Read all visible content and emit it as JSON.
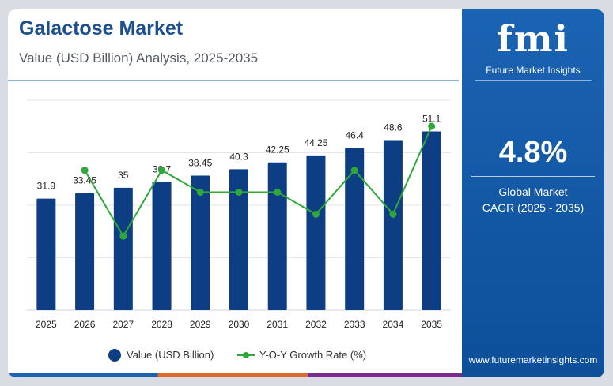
{
  "header": {
    "title": "Galactose Market",
    "subtitle": "Value (USD Billion) Analysis, 2025-2035"
  },
  "brand": {
    "logo_text": "fmi",
    "logo_subtitle": "Future Market Insights",
    "website": "www.futuremarketinsights.com"
  },
  "kpi": {
    "value": "4.8%",
    "label_line1": "Global Market",
    "label_line2": "CAGR (2025 - 2035)"
  },
  "colors": {
    "bar": "#0d3d82",
    "line": "#2fa83a",
    "panel": "#1b63b3"
  },
  "chart_data": {
    "type": "bar",
    "categories": [
      "2025",
      "2026",
      "2027",
      "2028",
      "2029",
      "2030",
      "2031",
      "2032",
      "2033",
      "2034",
      "2035"
    ],
    "series": [
      {
        "name": "Value (USD Billion)",
        "type": "bar",
        "values": [
          31.9,
          33.45,
          35,
          36.7,
          38.45,
          40.3,
          42.25,
          44.25,
          46.4,
          48.6,
          51.1
        ],
        "labels": [
          "31.9",
          "33.45",
          "35",
          "36.7",
          "38.45",
          "40.3",
          "42.25",
          "44.25",
          "46.4",
          "48.6",
          "51.1"
        ]
      },
      {
        "name": "Y-O-Y Growth Rate (%)",
        "type": "line",
        "x": [
          "2026",
          "2027",
          "2028",
          "2029",
          "2030",
          "2031",
          "2032",
          "2033",
          "2034",
          "2035"
        ],
        "values": [
          4.9,
          4.6,
          4.9,
          4.8,
          4.8,
          4.8,
          4.7,
          4.9,
          4.7,
          5.1
        ]
      }
    ],
    "ylim_bar": [
      0,
      60
    ],
    "ylim_line": [
      4.5,
      5.1
    ],
    "grid": true,
    "legend": "bottom"
  }
}
